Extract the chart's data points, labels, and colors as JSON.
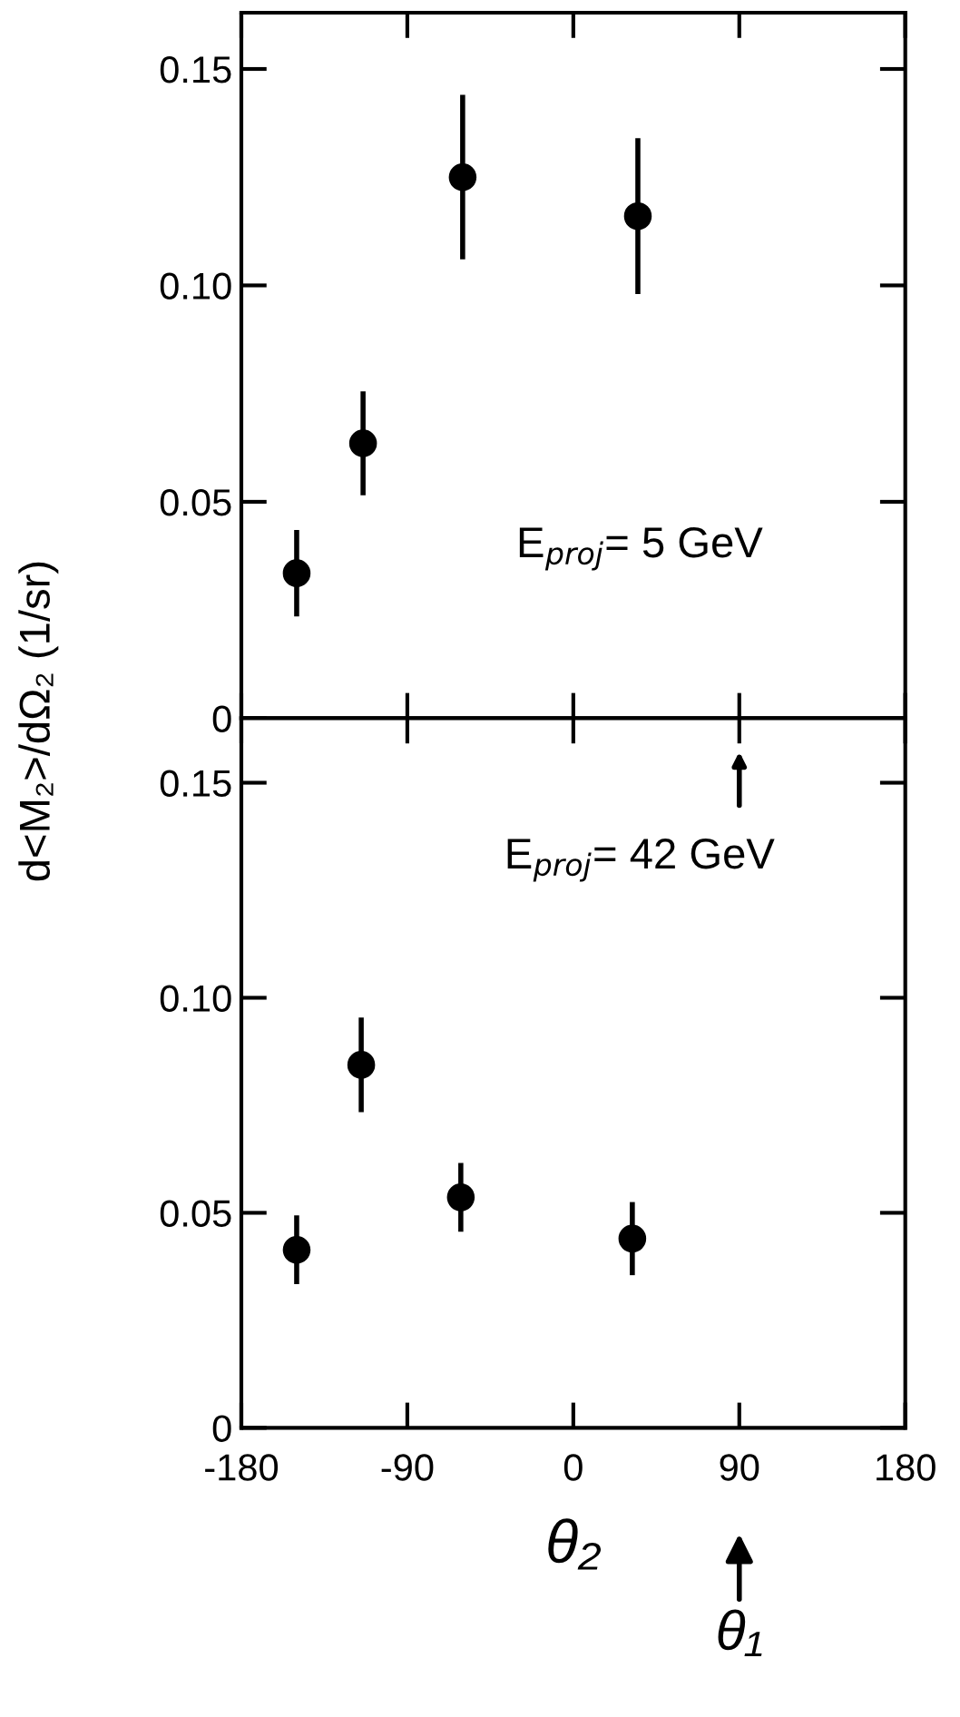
{
  "chart_data": [
    {
      "type": "scatter",
      "x": [
        -150,
        -114,
        -60,
        35
      ],
      "values": [
        0.0335,
        0.0635,
        0.125,
        0.116
      ],
      "errors": [
        0.01,
        0.012,
        0.019,
        0.018
      ],
      "color": "#000000",
      "marker": "circle",
      "xlim": [
        -180,
        180
      ],
      "xticks": [
        -180,
        -90,
        0,
        90,
        180
      ],
      "ylim": [
        0,
        0.163
      ],
      "yticks": [
        0,
        0.05,
        {
          "value": 0.1,
          "label": "0.10"
        },
        0.15
      ],
      "tick_labels": "y",
      "ylabel": "d<M₂>/dΩ₂ (1/sr)",
      "annotations": [
        "E$_{proj}$= 5 GeV"
      ],
      "grid": false,
      "legend": false
    },
    {
      "type": "scatter",
      "x": [
        -150,
        -115,
        -61,
        32
      ],
      "values": [
        0.0414,
        0.0844,
        0.0536,
        0.044
      ],
      "errors": [
        0.008,
        0.011,
        0.008,
        0.0085
      ],
      "color": "#000000",
      "marker": "circle",
      "xlim": [
        -180,
        180
      ],
      "xticks": [
        -180,
        -90,
        0,
        90,
        180
      ],
      "ylim": [
        0,
        0.165
      ],
      "yticks": [
        0,
        0.05,
        {
          "value": 0.1,
          "label": "0.10"
        },
        0.15
      ],
      "xlabel": "θ₂",
      "annotations": [
        "E$_{proj}$= 42 GeV",
        "θ₁"
      ],
      "grid": false,
      "legend": false
    }
  ]
}
